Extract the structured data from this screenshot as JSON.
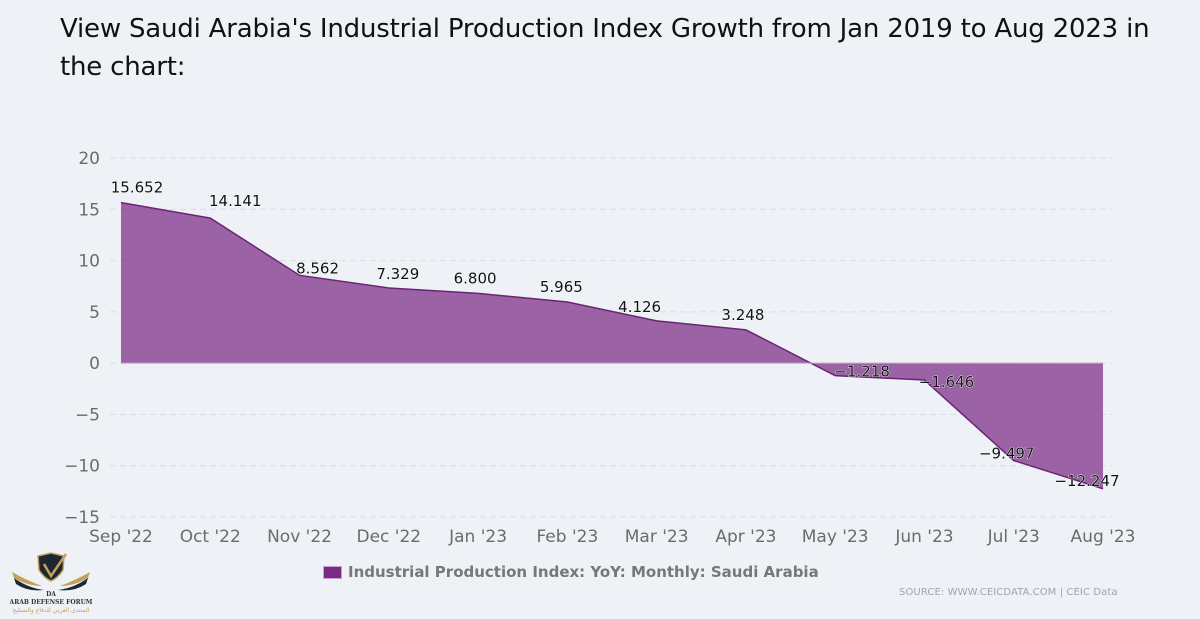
{
  "title": "View Saudi Arabia's Industrial Production Index Growth from Jan 2019 to Aug 2023 in the chart:",
  "chart_data": {
    "type": "area",
    "title": "View Saudi Arabia's Industrial Production Index Growth from Jan 2019 to Aug 2023 in the chart:",
    "xlabel": "",
    "ylabel": "",
    "categories": [
      "Sep '22",
      "Oct '22",
      "Nov '22",
      "Dec '22",
      "Jan '23",
      "Feb '23",
      "Mar '23",
      "Apr '23",
      "May '23",
      "Jun '23",
      "Jul '23",
      "Aug '23"
    ],
    "series": [
      {
        "name": "Industrial Production Index: YoY: Monthly: Saudi Arabia",
        "color": "#7b2b86",
        "values": [
          15.652,
          14.141,
          8.562,
          7.329,
          6.8,
          5.965,
          4.126,
          3.248,
          -1.218,
          -1.646,
          -9.497,
          -12.247
        ],
        "labels": [
          "15.652",
          "14.141",
          "8.562",
          "7.329",
          "6.800",
          "5.965",
          "4.126",
          "3.248",
          "-1.218",
          "-1.646",
          "-9.497",
          "-12.247"
        ]
      }
    ],
    "ylim": [
      -15,
      20
    ],
    "yticks": [
      20,
      15,
      10,
      5,
      0,
      -5,
      -10,
      -15
    ],
    "ytick_labels": [
      "20",
      "15",
      "10",
      "5",
      "0",
      "−5",
      "−10",
      "−15"
    ],
    "grid": true,
    "legend": "bottom-center"
  },
  "legend": {
    "label": "Industrial Production Index: YoY: Monthly: Saudi Arabia",
    "color": "#7b2b86"
  },
  "source": "SOURCE: WWW.CEICDATA.COM | CEIC Data",
  "logo": {
    "name": "ARAB DEFENSE FORUM",
    "monogram": "DA",
    "arabic": "المنتدى العربي للدفاع والتسليح"
  }
}
